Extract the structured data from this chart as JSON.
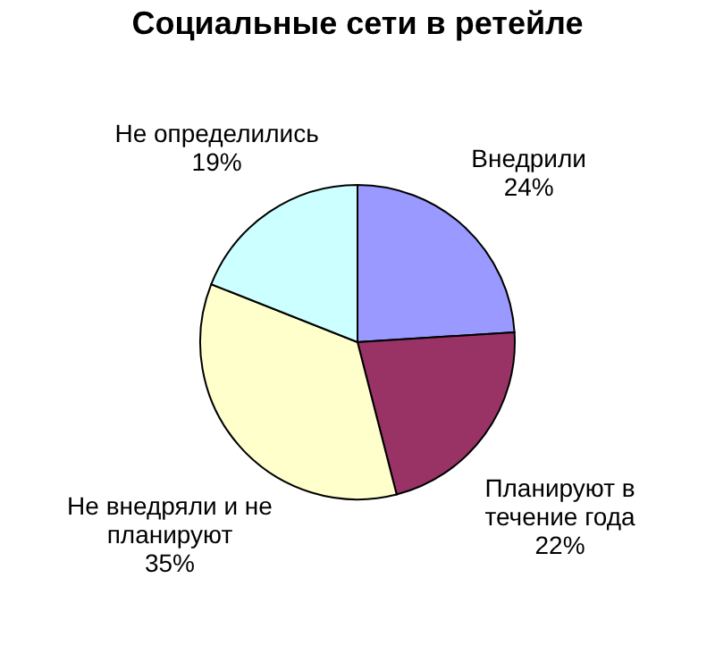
{
  "chart_data": {
    "type": "pie",
    "title": "Социальные сети в ретейле",
    "categories": [
      "Внедрили",
      "Планируют в\nтечение года",
      "Не внедряли и не\nпланируют",
      "Не определились"
    ],
    "values": [
      24,
      22,
      35,
      19
    ],
    "colors": [
      "#9999ff",
      "#993366",
      "#ffffcc",
      "#ccffff"
    ],
    "value_labels": [
      "24%",
      "22%",
      "35%",
      "19%"
    ],
    "legend": false
  }
}
